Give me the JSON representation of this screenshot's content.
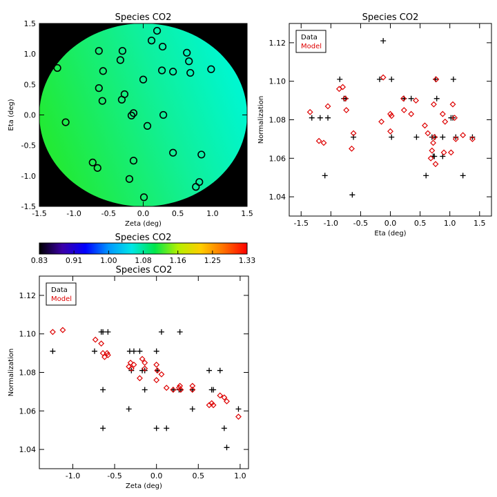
{
  "colors": {
    "data_marker": "#000000",
    "model_marker": "#dd0000",
    "disk_background": "#000000",
    "frame": "#000000"
  },
  "chart_data": [
    {
      "id": "map",
      "type": "heatmap",
      "title": "Species CO2",
      "xlabel": "Zeta (deg)",
      "ylabel": "Eta (deg)",
      "xlim": [
        -1.5,
        1.5
      ],
      "ylim": [
        -1.5,
        1.5
      ],
      "xticks": [
        -1.5,
        -1.0,
        -0.5,
        0.0,
        0.5,
        1.0,
        1.5
      ],
      "yticks": [
        -1.5,
        -1.0,
        -0.5,
        0.0,
        0.5,
        1.0,
        1.5
      ],
      "field": {
        "radius": 1.5,
        "colormap_stops": [
          {
            "value": 1.06,
            "color": "#22ea36"
          },
          {
            "value": 1.085,
            "color": "#0ff09c"
          },
          {
            "value": 1.1,
            "color": "#00f6cf"
          }
        ],
        "gradient_direction": [
          0.9,
          0.3
        ],
        "gradient_value_range": [
          1.06,
          1.1
        ]
      },
      "circles": [
        {
          "x": 0.2,
          "y": 1.38
        },
        {
          "x": 0.12,
          "y": 1.22
        },
        {
          "x": 0.28,
          "y": 1.12
        },
        {
          "x": 0.63,
          "y": 1.02
        },
        {
          "x": 0.66,
          "y": 0.88
        },
        {
          "x": -0.64,
          "y": 1.05
        },
        {
          "x": -0.3,
          "y": 1.05
        },
        {
          "x": -0.33,
          "y": 0.9
        },
        {
          "x": -0.58,
          "y": 0.72
        },
        {
          "x": -1.24,
          "y": 0.77
        },
        {
          "x": 0.27,
          "y": 0.73
        },
        {
          "x": 0.43,
          "y": 0.71
        },
        {
          "x": 0.68,
          "y": 0.69
        },
        {
          "x": 0.98,
          "y": 0.75
        },
        {
          "x": 0.0,
          "y": 0.58
        },
        {
          "x": -0.64,
          "y": 0.44
        },
        {
          "x": -0.27,
          "y": 0.34
        },
        {
          "x": -0.31,
          "y": 0.25
        },
        {
          "x": -0.59,
          "y": 0.23
        },
        {
          "x": -0.14,
          "y": 0.03
        },
        {
          "x": -0.17,
          "y": -0.01
        },
        {
          "x": 0.29,
          "y": 0.0
        },
        {
          "x": 0.06,
          "y": -0.18
        },
        {
          "x": -1.12,
          "y": -0.12
        },
        {
          "x": 0.43,
          "y": -0.62
        },
        {
          "x": 0.84,
          "y": -0.65
        },
        {
          "x": -0.73,
          "y": -0.78
        },
        {
          "x": -0.66,
          "y": -0.87
        },
        {
          "x": -0.14,
          "y": -0.75
        },
        {
          "x": -0.2,
          "y": -1.05
        },
        {
          "x": 0.81,
          "y": -1.1
        },
        {
          "x": 0.76,
          "y": -1.18
        },
        {
          "x": 0.01,
          "y": -1.35
        }
      ]
    },
    {
      "id": "colorbar",
      "type": "colorbar",
      "title": "Species CO2",
      "tick_labels": [
        "0.83",
        "0.91",
        "1.00",
        "1.08",
        "1.16",
        "1.25",
        "1.33"
      ],
      "range": [
        0.83,
        1.33
      ],
      "gradient_stops": [
        "#000000",
        "#3b00a8",
        "#0000ff",
        "#0096ff",
        "#00e6e6",
        "#00e64b",
        "#b4f000",
        "#ffcd00",
        "#ff6e00",
        "#ff0000"
      ]
    },
    {
      "id": "norm_vs_eta",
      "type": "scatter",
      "title": "Species CO2",
      "xlabel": "Eta (deg)",
      "ylabel": "Normalization",
      "xlim": [
        -1.7,
        1.7
      ],
      "ylim": [
        1.03,
        1.13
      ],
      "xticks": [
        -1.5,
        -1.0,
        -0.5,
        0.0,
        0.5,
        1.0,
        1.5
      ],
      "xtick_labels": [
        "-1.5",
        "-1.0",
        "-0.5",
        "0.0",
        "0.5",
        "1.0",
        "1.5"
      ],
      "yticks": [
        1.04,
        1.06,
        1.08,
        1.1,
        1.12
      ],
      "ytick_labels": [
        "1.04",
        "1.06",
        "1.08",
        "1.10",
        "1.12"
      ],
      "legend": {
        "position": "top-left",
        "entries": [
          "Data",
          "Model"
        ]
      },
      "series": [
        {
          "name": "Data",
          "marker": "plus",
          "points": [
            [
              -1.32,
              1.081
            ],
            [
              -1.18,
              1.081
            ],
            [
              -1.05,
              1.081
            ],
            [
              -1.1,
              1.051
            ],
            [
              -0.85,
              1.101
            ],
            [
              -0.75,
              1.091
            ],
            [
              -0.78,
              1.091
            ],
            [
              -0.62,
              1.071
            ],
            [
              -0.64,
              1.041
            ],
            [
              -0.18,
              1.101
            ],
            [
              -0.12,
              1.121
            ],
            [
              0.02,
              1.101
            ],
            [
              0.02,
              1.071
            ],
            [
              0.23,
              1.091
            ],
            [
              0.35,
              1.091
            ],
            [
              0.44,
              1.071
            ],
            [
              0.6,
              1.051
            ],
            [
              0.7,
              1.071
            ],
            [
              0.72,
              1.061
            ],
            [
              0.74,
              1.061
            ],
            [
              0.75,
              1.071
            ],
            [
              0.76,
              1.101
            ],
            [
              0.78,
              1.091
            ],
            [
              0.88,
              1.061
            ],
            [
              0.88,
              1.071
            ],
            [
              1.02,
              1.081
            ],
            [
              1.05,
              1.081
            ],
            [
              1.06,
              1.101
            ],
            [
              1.1,
              1.071
            ],
            [
              1.22,
              1.051
            ],
            [
              1.38,
              1.071
            ]
          ]
        },
        {
          "name": "Model",
          "marker": "diamond",
          "points": [
            [
              -1.35,
              1.084
            ],
            [
              -1.2,
              1.069
            ],
            [
              -1.12,
              1.068
            ],
            [
              -1.05,
              1.087
            ],
            [
              -0.86,
              1.096
            ],
            [
              -0.8,
              1.097
            ],
            [
              -0.76,
              1.091
            ],
            [
              -0.74,
              1.085
            ],
            [
              -0.65,
              1.065
            ],
            [
              -0.62,
              1.073
            ],
            [
              -0.15,
              1.079
            ],
            [
              -0.12,
              1.102
            ],
            [
              0.0,
              1.083
            ],
            [
              0.02,
              1.082
            ],
            [
              0.0,
              1.074
            ],
            [
              0.22,
              1.091
            ],
            [
              0.23,
              1.085
            ],
            [
              0.35,
              1.083
            ],
            [
              0.43,
              1.09
            ],
            [
              0.58,
              1.077
            ],
            [
              0.63,
              1.073
            ],
            [
              0.68,
              1.06
            ],
            [
              0.7,
              1.064
            ],
            [
              0.72,
              1.068
            ],
            [
              0.73,
              1.088
            ],
            [
              0.74,
              1.071
            ],
            [
              0.76,
              1.057
            ],
            [
              0.77,
              1.101
            ],
            [
              0.88,
              1.083
            ],
            [
              0.9,
              1.063
            ],
            [
              0.92,
              1.079
            ],
            [
              1.02,
              1.063
            ],
            [
              1.05,
              1.088
            ],
            [
              1.08,
              1.081
            ],
            [
              1.1,
              1.07
            ],
            [
              1.22,
              1.072
            ],
            [
              1.38,
              1.07
            ]
          ]
        }
      ]
    },
    {
      "id": "norm_vs_zeta",
      "type": "scatter",
      "title": "Species CO2",
      "xlabel": "Zeta (deg)",
      "ylabel": "Normalization",
      "xlim": [
        -1.4,
        1.1
      ],
      "ylim": [
        1.03,
        1.13
      ],
      "xticks": [
        -1.0,
        -0.5,
        0.0,
        0.5,
        1.0
      ],
      "xtick_labels": [
        "-1.0",
        "-0.5",
        "0.0",
        "0.5",
        "1.0"
      ],
      "yticks": [
        1.04,
        1.06,
        1.08,
        1.1,
        1.12
      ],
      "ytick_labels": [
        "1.04",
        "1.06",
        "1.08",
        "1.10",
        "1.12"
      ],
      "legend": {
        "position": "top-left",
        "entries": [
          "Data",
          "Model"
        ]
      },
      "series": [
        {
          "name": "Data",
          "marker": "plus",
          "points": [
            [
              -1.24,
              1.091
            ],
            [
              -0.74,
              1.091
            ],
            [
              -0.66,
              1.101
            ],
            [
              -0.64,
              1.101
            ],
            [
              -0.58,
              1.101
            ],
            [
              -0.64,
              1.071
            ],
            [
              -0.64,
              1.051
            ],
            [
              -0.33,
              1.061
            ],
            [
              -0.32,
              1.091
            ],
            [
              -0.27,
              1.091
            ],
            [
              -0.3,
              1.081
            ],
            [
              -0.2,
              1.091
            ],
            [
              -0.17,
              1.081
            ],
            [
              -0.14,
              1.081
            ],
            [
              -0.14,
              1.071
            ],
            [
              0.01,
              1.081
            ],
            [
              0.0,
              1.091
            ],
            [
              0.06,
              1.101
            ],
            [
              0.0,
              1.051
            ],
            [
              0.12,
              1.051
            ],
            [
              0.2,
              1.071
            ],
            [
              0.27,
              1.071
            ],
            [
              0.28,
              1.101
            ],
            [
              0.29,
              1.071
            ],
            [
              0.43,
              1.071
            ],
            [
              0.43,
              1.061
            ],
            [
              0.63,
              1.081
            ],
            [
              0.66,
              1.071
            ],
            [
              0.68,
              1.071
            ],
            [
              0.76,
              1.081
            ],
            [
              0.81,
              1.051
            ],
            [
              0.84,
              1.041
            ],
            [
              0.98,
              1.061
            ]
          ]
        },
        {
          "name": "Model",
          "marker": "diamond",
          "points": [
            [
              -1.24,
              1.101
            ],
            [
              -1.12,
              1.102
            ],
            [
              -0.73,
              1.097
            ],
            [
              -0.66,
              1.095
            ],
            [
              -0.64,
              1.09
            ],
            [
              -0.62,
              1.088
            ],
            [
              -0.59,
              1.09
            ],
            [
              -0.58,
              1.089
            ],
            [
              -0.33,
              1.083
            ],
            [
              -0.31,
              1.085
            ],
            [
              -0.3,
              1.082
            ],
            [
              -0.27,
              1.084
            ],
            [
              -0.2,
              1.077
            ],
            [
              -0.17,
              1.087
            ],
            [
              -0.14,
              1.085
            ],
            [
              -0.14,
              1.082
            ],
            [
              0.0,
              1.084
            ],
            [
              0.01,
              1.081
            ],
            [
              0.0,
              1.076
            ],
            [
              0.06,
              1.079
            ],
            [
              0.12,
              1.072
            ],
            [
              0.2,
              1.071
            ],
            [
              0.27,
              1.072
            ],
            [
              0.28,
              1.073
            ],
            [
              0.29,
              1.071
            ],
            [
              0.43,
              1.073
            ],
            [
              0.43,
              1.071
            ],
            [
              0.63,
              1.063
            ],
            [
              0.66,
              1.064
            ],
            [
              0.68,
              1.063
            ],
            [
              0.76,
              1.068
            ],
            [
              0.81,
              1.067
            ],
            [
              0.84,
              1.065
            ],
            [
              0.98,
              1.057
            ]
          ]
        }
      ]
    }
  ]
}
